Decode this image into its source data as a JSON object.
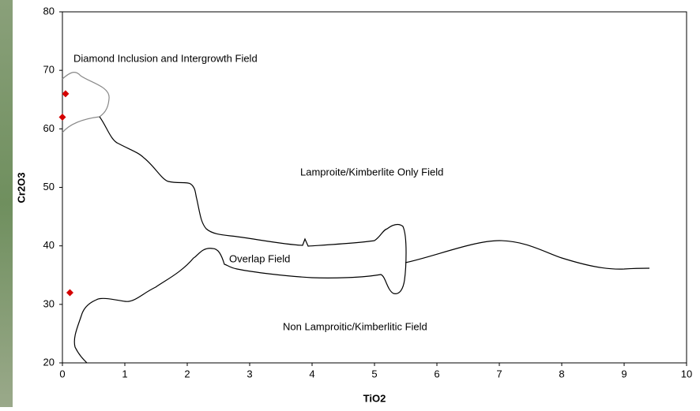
{
  "chart_data": {
    "type": "scatter",
    "xlabel": "TiO2",
    "ylabel": "Cr2O3",
    "x": [
      0.05,
      0,
      0.12
    ],
    "values": [
      66,
      62,
      32
    ],
    "color": "#d40000",
    "xlim": [
      0,
      10
    ],
    "xticks": [
      0,
      1,
      2,
      3,
      4,
      5,
      6,
      7,
      8,
      9,
      10
    ],
    "ylim": [
      20,
      80
    ],
    "yticks": [
      20,
      30,
      40,
      50,
      60,
      70,
      80
    ],
    "grid": false,
    "annotations": [
      "Diamond Inclusion and Intergrowth Field",
      "Lamproite/Kimberlite Only Field",
      "Overlap Field",
      "Non Lamproitic/Kimberlitic Field"
    ]
  }
}
